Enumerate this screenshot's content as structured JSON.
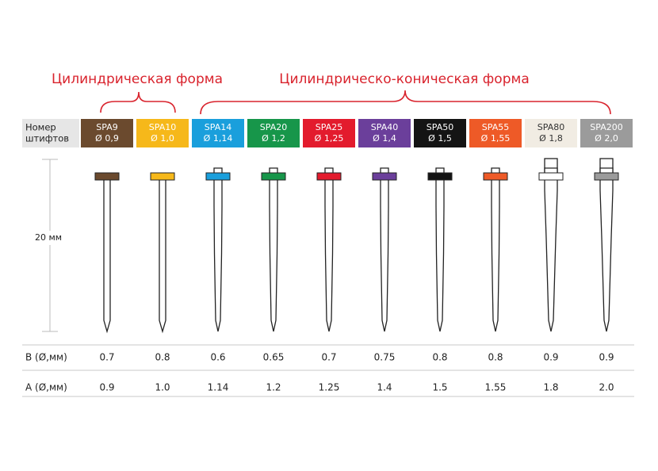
{
  "groups": [
    {
      "label": "Цилиндрическая форма"
    },
    {
      "label": "Цилиндрическо-коническая форма"
    }
  ],
  "header_label": [
    "Номер",
    "штифтов"
  ],
  "dimension_label": "20 мм",
  "row_labels": {
    "b": "B (Ø,мм)",
    "a": "A (Ø,мм)"
  },
  "pins": [
    {
      "name": "SPA9",
      "diameter": "Ø 0,9",
      "color": "#6b4a2e",
      "text_color": "#ffffff",
      "b": "0.7",
      "a": "0.9"
    },
    {
      "name": "SPA10",
      "diameter": "Ø 1,0",
      "color": "#f6b81a",
      "text_color": "#ffffff",
      "b": "0.8",
      "a": "1.0"
    },
    {
      "name": "SPA14",
      "diameter": "Ø 1,14",
      "color": "#1a9fdc",
      "text_color": "#ffffff",
      "b": "0.6",
      "a": "1.14"
    },
    {
      "name": "SPA20",
      "diameter": "Ø 1,2",
      "color": "#17964a",
      "text_color": "#ffffff",
      "b": "0.65",
      "a": "1.2"
    },
    {
      "name": "SPA25",
      "diameter": "Ø 1,25",
      "color": "#e31b2d",
      "text_color": "#ffffff",
      "b": "0.7",
      "a": "1.25"
    },
    {
      "name": "SPA40",
      "diameter": "Ø 1,4",
      "color": "#6b3f9b",
      "text_color": "#ffffff",
      "b": "0.75",
      "a": "1.4"
    },
    {
      "name": "SPA50",
      "diameter": "Ø 1,5",
      "color": "#141414",
      "text_color": "#ffffff",
      "b": "0.8",
      "a": "1.5"
    },
    {
      "name": "SPA55",
      "diameter": "Ø 1,55",
      "color": "#ee5a27",
      "text_color": "#ffffff",
      "b": "0.8",
      "a": "1.55"
    },
    {
      "name": "SPA80",
      "diameter": "Ø 1,8",
      "color": "#f1ece3",
      "text_color": "#333333",
      "b": "0.9",
      "a": "1.8"
    },
    {
      "name": "SPA200",
      "diameter": "Ø 2,0",
      "color": "#9b9b9b",
      "text_color": "#ffffff",
      "b": "0.9",
      "a": "2.0"
    }
  ]
}
